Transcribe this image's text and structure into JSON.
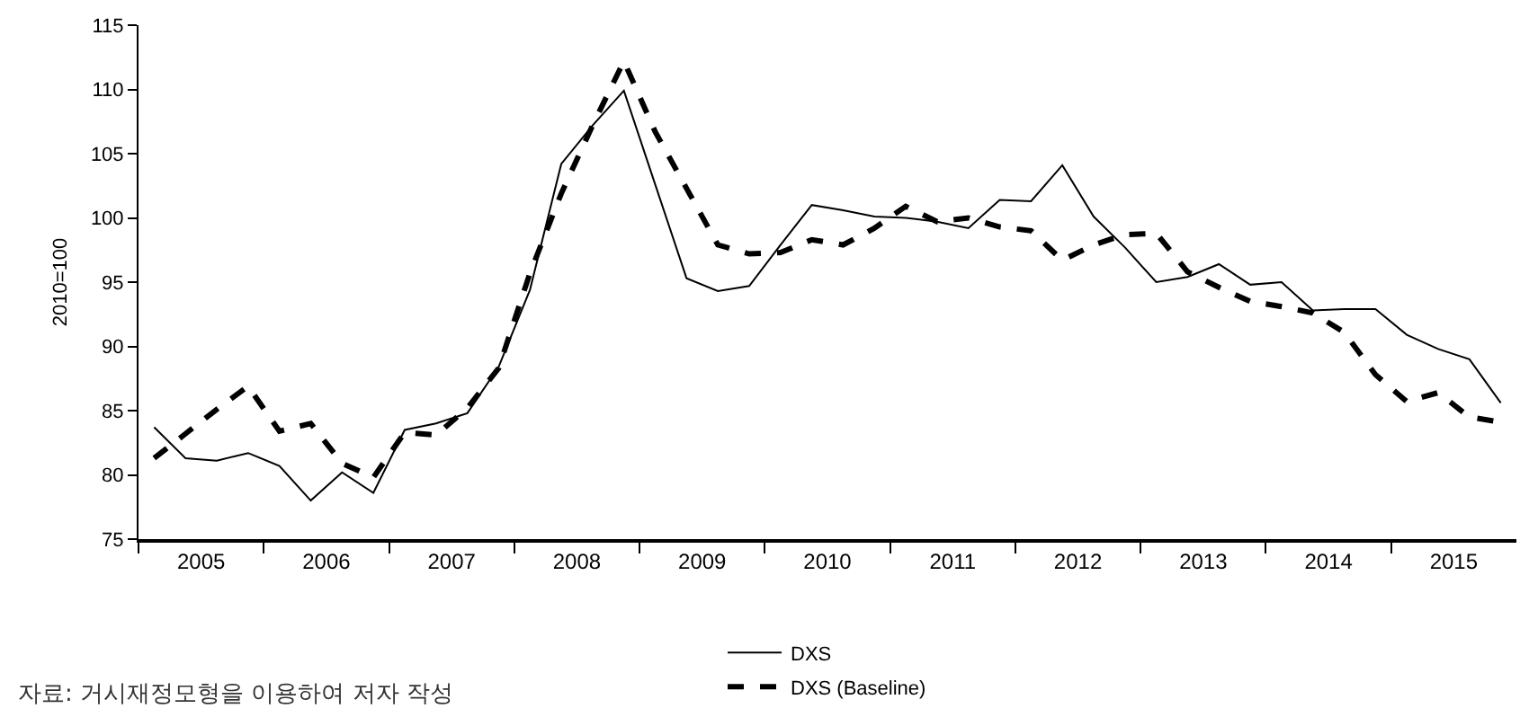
{
  "chart_data": {
    "type": "line",
    "ylabel": "2010=100",
    "x": [
      2005.125,
      2005.375,
      2005.625,
      2005.875,
      2006.125,
      2006.375,
      2006.625,
      2006.875,
      2007.125,
      2007.375,
      2007.625,
      2007.875,
      2008.125,
      2008.375,
      2008.625,
      2008.875,
      2009.125,
      2009.375,
      2009.625,
      2009.875,
      2010.125,
      2010.375,
      2010.625,
      2010.875,
      2011.125,
      2011.375,
      2011.625,
      2011.875,
      2012.125,
      2012.375,
      2012.625,
      2012.875,
      2013.125,
      2013.375,
      2013.625,
      2013.875,
      2014.125,
      2014.375,
      2014.625,
      2014.875,
      2015.125,
      2015.375,
      2015.625,
      2015.875
    ],
    "series": [
      {
        "name": "DXS",
        "color": "#000000",
        "line_style": "solid",
        "values": [
          83.7,
          81.3,
          81.1,
          81.7,
          80.7,
          78.0,
          80.2,
          78.6,
          83.5,
          84.0,
          84.8,
          88.4,
          94.4,
          104.2,
          107.2,
          109.9,
          102.6,
          95.3,
          94.3,
          94.7,
          97.9,
          101.0,
          100.6,
          100.1,
          100.0,
          99.7,
          99.2,
          101.4,
          101.3,
          104.1,
          100.1,
          97.7,
          95.0,
          95.4,
          96.4,
          94.8,
          95.0,
          92.8,
          92.9,
          92.9,
          90.9,
          89.8,
          89.0,
          85.6
        ]
      },
      {
        "name": "DXS (Baseline)",
        "color": "#000000",
        "line_style": "dashed",
        "values": [
          81.3,
          83.2,
          85.1,
          86.9,
          83.4,
          84.0,
          80.9,
          79.8,
          83.3,
          83.1,
          85.2,
          88.3,
          95.7,
          101.9,
          107.2,
          112.2,
          106.7,
          102.3,
          97.9,
          97.2,
          97.3,
          98.3,
          97.9,
          99.2,
          100.9,
          99.7,
          100.0,
          99.3,
          99.0,
          96.7,
          97.9,
          98.7,
          98.8,
          95.8,
          94.6,
          93.5,
          93.1,
          92.6,
          91.1,
          87.8,
          85.7,
          86.4,
          84.5,
          84.1
        ]
      }
    ],
    "xlim": [
      2005,
      2016
    ],
    "xticks": [
      {
        "value": 2005,
        "label": null
      },
      {
        "value": 2005.5,
        "label": "2005"
      },
      {
        "value": 2006,
        "label": null
      },
      {
        "value": 2006.5,
        "label": "2006"
      },
      {
        "value": 2007,
        "label": null
      },
      {
        "value": 2007.5,
        "label": "2007"
      },
      {
        "value": 2008,
        "label": null
      },
      {
        "value": 2008.5,
        "label": "2008"
      },
      {
        "value": 2009,
        "label": null
      },
      {
        "value": 2009.5,
        "label": "2009"
      },
      {
        "value": 2010,
        "label": null
      },
      {
        "value": 2010.5,
        "label": "2010"
      },
      {
        "value": 2011,
        "label": null
      },
      {
        "value": 2011.5,
        "label": "2011"
      },
      {
        "value": 2012,
        "label": null
      },
      {
        "value": 2012.5,
        "label": "2012"
      },
      {
        "value": 2013,
        "label": null
      },
      {
        "value": 2013.5,
        "label": "2013"
      },
      {
        "value": 2014,
        "label": null
      },
      {
        "value": 2014.5,
        "label": "2014"
      },
      {
        "value": 2015,
        "label": null
      },
      {
        "value": 2015.5,
        "label": "2015"
      }
    ],
    "ylim": [
      75,
      115
    ],
    "yticks": [
      75,
      80,
      85,
      90,
      95,
      100,
      105,
      110,
      115
    ],
    "legend": "bottom",
    "marker": "none",
    "annotations": [
      "자료: 거시재정모형을 이용하여 저자 작성"
    ]
  }
}
